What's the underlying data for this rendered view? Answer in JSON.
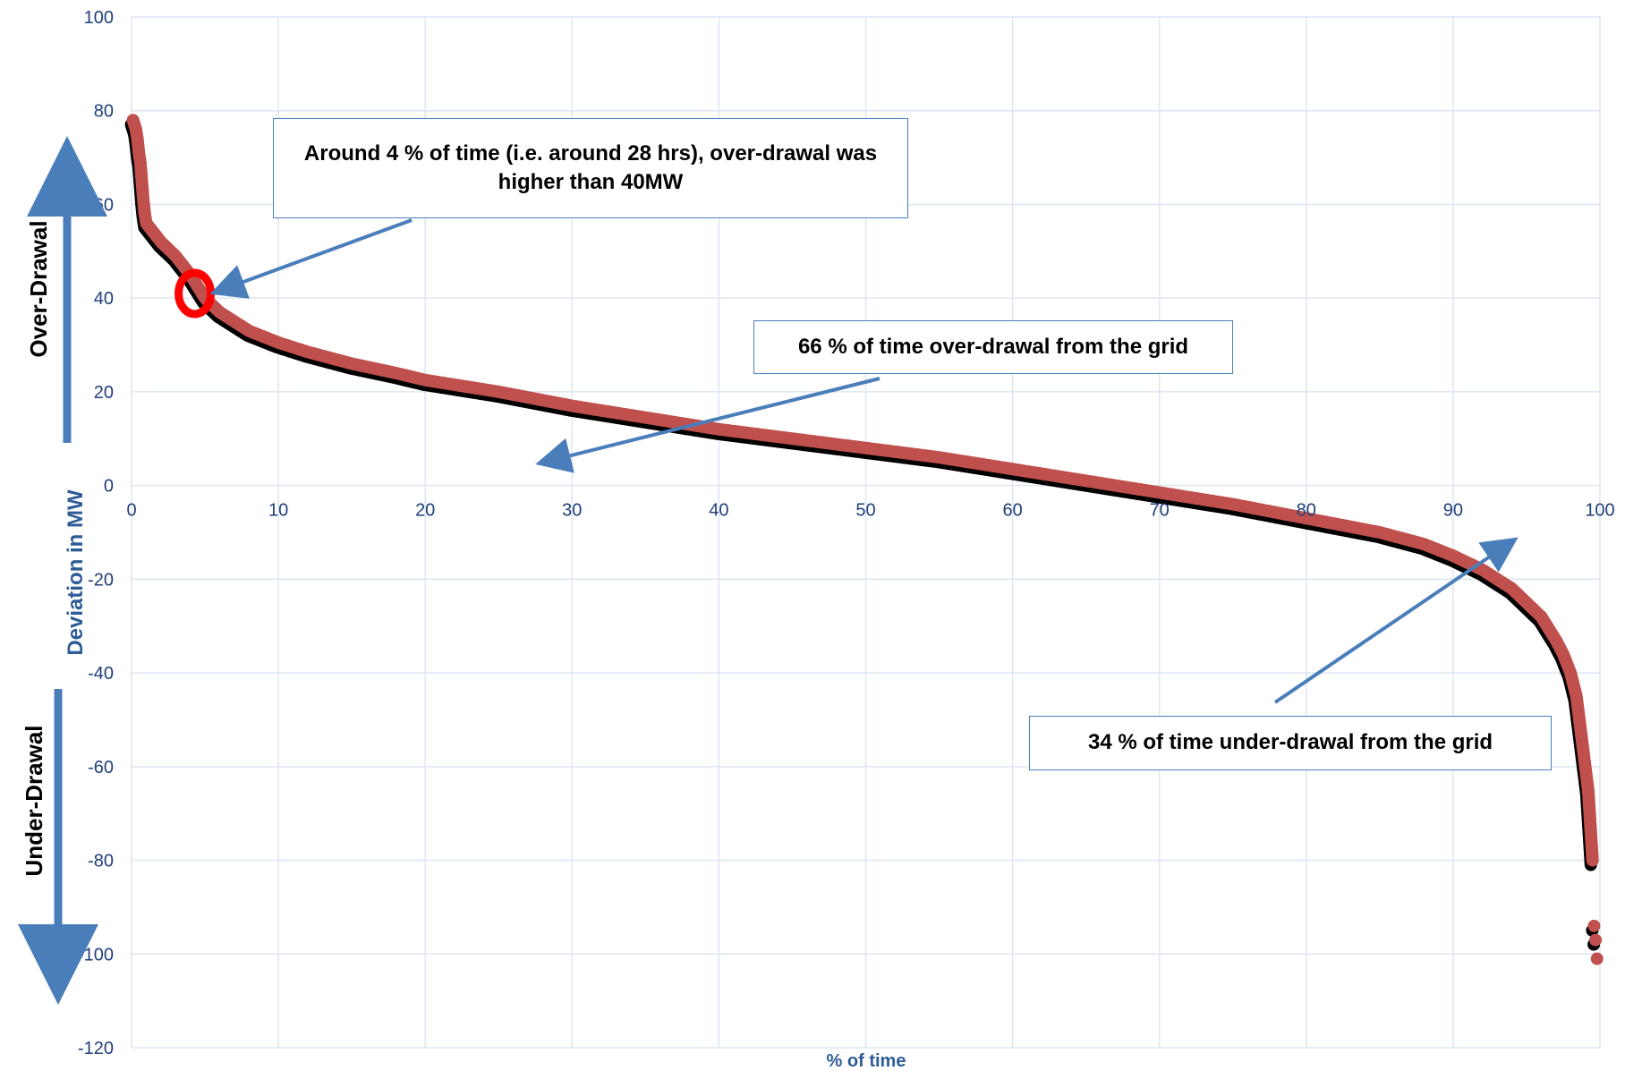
{
  "chart_data": {
    "type": "scatter",
    "xlabel": "% of time",
    "ylabel": "Deviation in MW",
    "xlim": [
      0,
      100
    ],
    "ylim": [
      -120,
      100
    ],
    "x_ticks": [
      "0",
      "10",
      "20",
      "30",
      "40",
      "50",
      "60",
      "70",
      "80",
      "90",
      "100"
    ],
    "y_ticks": [
      "100",
      "80",
      "60",
      "40",
      "20",
      "0",
      "-20",
      "-40",
      "-60",
      "-80",
      "-100",
      "-120"
    ],
    "grid": true,
    "series": [
      {
        "color": "#c0504d",
        "points": [
          [
            0.1,
            78
          ],
          [
            0.2,
            77
          ],
          [
            0.3,
            76
          ],
          [
            0.4,
            74
          ],
          [
            0.5,
            71
          ],
          [
            0.6,
            69
          ],
          [
            0.7,
            65
          ],
          [
            0.8,
            61
          ],
          [
            0.9,
            58
          ],
          [
            1,
            56
          ],
          [
            1.5,
            54
          ],
          [
            2,
            52
          ],
          [
            3,
            49
          ],
          [
            4,
            45
          ],
          [
            5,
            40
          ],
          [
            6,
            37
          ],
          [
            8,
            33
          ],
          [
            10,
            30.5
          ],
          [
            12,
            28.5
          ],
          [
            15,
            26
          ],
          [
            18,
            24
          ],
          [
            20,
            22.5
          ],
          [
            25,
            20
          ],
          [
            30,
            17
          ],
          [
            35,
            14.5
          ],
          [
            40,
            12
          ],
          [
            45,
            10
          ],
          [
            50,
            8
          ],
          [
            55,
            6
          ],
          [
            60,
            3.5
          ],
          [
            65,
            1
          ],
          [
            70,
            -1.5
          ],
          [
            75,
            -4
          ],
          [
            80,
            -7
          ],
          [
            85,
            -10
          ],
          [
            88,
            -12.5
          ],
          [
            90,
            -15
          ],
          [
            92,
            -18
          ],
          [
            94,
            -22
          ],
          [
            95,
            -25
          ],
          [
            96,
            -28
          ],
          [
            97,
            -33
          ],
          [
            97.5,
            -36
          ],
          [
            98,
            -40
          ],
          [
            98.4,
            -45
          ],
          [
            98.6,
            -50
          ],
          [
            98.8,
            -55
          ],
          [
            99,
            -60
          ],
          [
            99.2,
            -65
          ],
          [
            99.3,
            -70
          ],
          [
            99.4,
            -75
          ],
          [
            99.5,
            -80
          ],
          [
            99.6,
            -94
          ],
          [
            99.7,
            -97
          ],
          [
            99.8,
            -101
          ]
        ]
      }
    ],
    "highlight": {
      "x": 4.3,
      "y": 41,
      "color": "#ff0000"
    },
    "annotations": [
      "Around 4 % of time (i.e. around 28 hrs), over-drawal was higher than 40MW",
      "66 % of time over-drawal from the grid",
      "34 % of time under-drawal from the grid"
    ]
  },
  "side_labels": {
    "over": "Over-Drawal",
    "under": "Under-Drawal"
  },
  "colors": {
    "grid": "#dce6f2",
    "arrow": "#4a7ebb",
    "marker": "#c0504d",
    "shadow": "#000000",
    "tick": "#1f3f7a",
    "title": "#2e5c97"
  }
}
